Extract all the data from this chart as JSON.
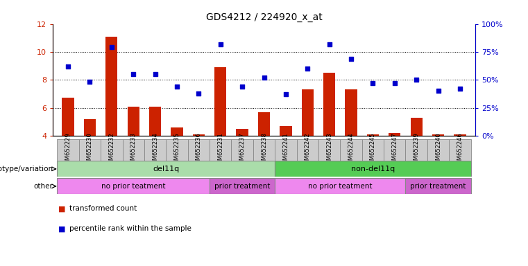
{
  "title": "GDS4212 / 224920_x_at",
  "samples": [
    "GSM652229",
    "GSM652230",
    "GSM652232",
    "GSM652233",
    "GSM652234",
    "GSM652235",
    "GSM652236",
    "GSM652231",
    "GSM652237",
    "GSM652238",
    "GSM652241",
    "GSM652242",
    "GSM652243",
    "GSM652244",
    "GSM652245",
    "GSM652247",
    "GSM652239",
    "GSM652240",
    "GSM652246"
  ],
  "bar_values": [
    6.7,
    5.2,
    11.1,
    6.1,
    6.1,
    4.6,
    4.1,
    8.9,
    4.5,
    5.7,
    4.7,
    7.3,
    8.5,
    7.3,
    4.1,
    4.2,
    5.3,
    4.1,
    4.1
  ],
  "dot_percentiles": [
    62,
    48,
    79,
    55,
    55,
    44,
    38,
    82,
    44,
    52,
    37,
    60,
    82,
    69,
    47,
    47,
    50,
    40,
    42
  ],
  "bar_color": "#cc2200",
  "dot_color": "#0000cc",
  "ylim_left": [
    4,
    12
  ],
  "ylim_right": [
    0,
    100
  ],
  "yticks_left": [
    4,
    6,
    8,
    10,
    12
  ],
  "yticks_right": [
    0,
    25,
    50,
    75,
    100
  ],
  "ytick_labels_right": [
    "0%",
    "25%",
    "50%",
    "75%",
    "100%"
  ],
  "hgrid_at": [
    6,
    8,
    10
  ],
  "genotype_groups": [
    {
      "label": "del11q",
      "start": 0,
      "end": 9,
      "color": "#aaddaa"
    },
    {
      "label": "non-del11q",
      "start": 10,
      "end": 18,
      "color": "#55cc55"
    }
  ],
  "other_groups": [
    {
      "label": "no prior teatment",
      "start": 0,
      "end": 6,
      "color": "#ee88ee"
    },
    {
      "label": "prior treatment",
      "start": 7,
      "end": 9,
      "color": "#cc66cc"
    },
    {
      "label": "no prior teatment",
      "start": 10,
      "end": 15,
      "color": "#ee88ee"
    },
    {
      "label": "prior treatment",
      "start": 16,
      "end": 18,
      "color": "#cc66cc"
    }
  ],
  "row_label_genotype": "genotype/variation",
  "row_label_other": "other",
  "legend": [
    {
      "color": "#cc2200",
      "label": "transformed count"
    },
    {
      "color": "#0000cc",
      "label": "percentile rank within the sample"
    }
  ],
  "xticklabel_bg": "#cccccc",
  "xticklabel_fontsize": 6.0,
  "bar_width": 0.55
}
